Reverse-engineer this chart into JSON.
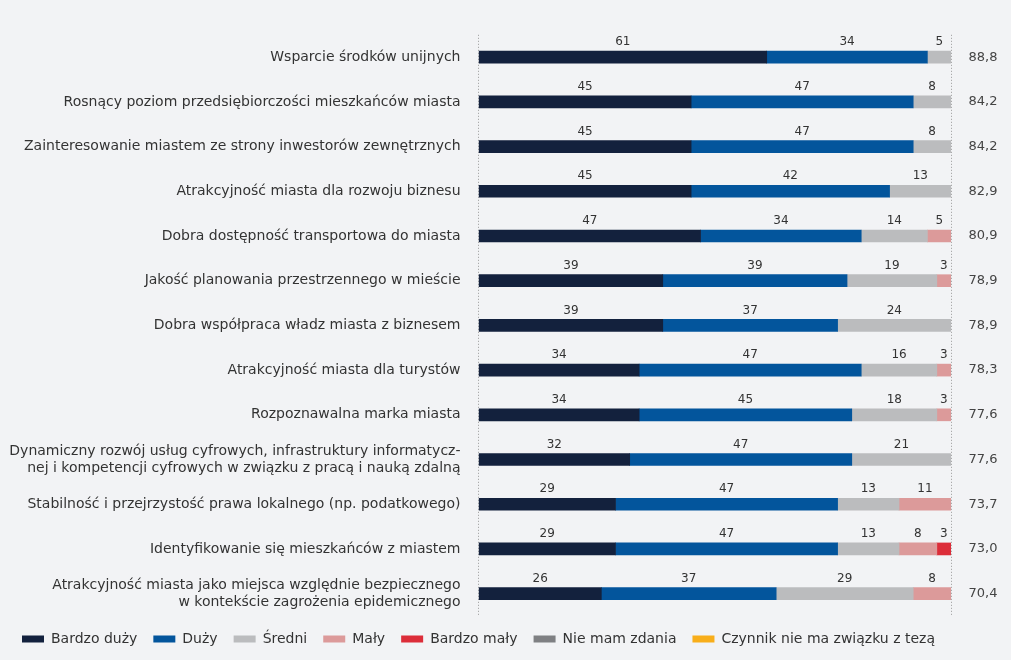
{
  "chart_data": {
    "type": "bar",
    "orientation": "horizontal",
    "stacked": true,
    "categories": [
      "Wsparcie środków unijnych",
      "Rosnący poziom przedsiębiorczości mieszkańców miasta",
      "Zainteresowanie miastem ze strony inwestorów zewnętrznych",
      "Atrakcyjność miasta dla rozwoju biznesu",
      "Dobra dostępność transportowa do miasta",
      "Jakość planowania przestrzennego w mieście",
      "Dobra współpraca władz miasta z biznesem",
      "Atrakcyjność miasta dla turystów",
      "Rozpoznawalna marka miasta",
      "Dynamiczny rozwój usług cyfrowych, infrastruktury informatycz-\nnej i kompetencji cyfrowych w związku z pracą i nauką zdalną",
      "Stabilność i przejrzystość prawa lokalnego (np. podatkowego)",
      "Identyfikowanie się mieszkańców z miastem",
      "Atrakcyjność miasta jako miejsca względnie bezpiecznego\nw kontekście zagrożenia epidemicznego"
    ],
    "series": [
      {
        "name": "Bardzo duży",
        "color": "#13213d",
        "values": [
          61,
          45,
          45,
          45,
          47,
          39,
          39,
          34,
          34,
          32,
          29,
          29,
          26
        ]
      },
      {
        "name": "Duży",
        "color": "#03559c",
        "values": [
          34,
          47,
          47,
          42,
          34,
          39,
          37,
          47,
          45,
          47,
          47,
          47,
          37
        ]
      },
      {
        "name": "Średni",
        "color": "#bbbcbe",
        "values": [
          5,
          8,
          8,
          13,
          14,
          19,
          24,
          16,
          18,
          21,
          13,
          13,
          29
        ]
      },
      {
        "name": "Mały",
        "color": "#dc9a9a",
        "values": [
          null,
          null,
          null,
          null,
          5,
          3,
          null,
          3,
          3,
          null,
          11,
          8,
          8
        ]
      },
      {
        "name": "Bardzo mały",
        "color": "#dc2d39",
        "values": [
          null,
          null,
          null,
          null,
          null,
          null,
          null,
          null,
          null,
          null,
          null,
          3,
          null
        ]
      },
      {
        "name": "Nie mam zdania",
        "color": "#7f8083",
        "values": [
          null,
          null,
          null,
          null,
          null,
          null,
          null,
          null,
          null,
          null,
          null,
          null,
          null
        ]
      },
      {
        "name": "Czynnik nie ma związku z tezą",
        "color": "#f8ae1a",
        "values": [
          null,
          null,
          null,
          null,
          null,
          null,
          null,
          null,
          null,
          null,
          null,
          null,
          null
        ]
      }
    ],
    "xlim": [
      0,
      100
    ],
    "xticks": [
      {
        "value": 0,
        "label": null
      },
      {
        "value": 100,
        "label": null
      }
    ],
    "grid": "x",
    "tick_labels": "y",
    "data_labels": true,
    "legend": "bottom",
    "annotations": [
      "88,8",
      "84,2",
      "84,2",
      "82,9",
      "80,9",
      "78,9",
      "78,9",
      "78,3",
      "77,6",
      "77,6",
      "73,7",
      "73,0",
      "70,4"
    ]
  }
}
